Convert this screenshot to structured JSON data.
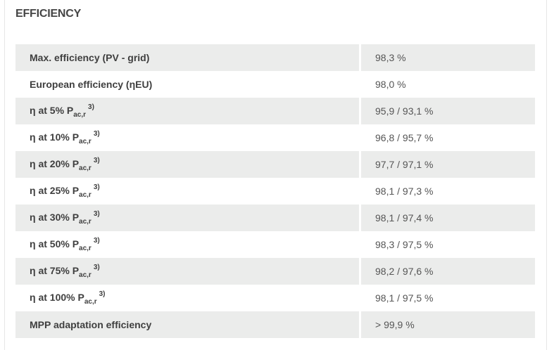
{
  "title": "EFFICIENCY",
  "rows": [
    {
      "label": "Max. efficiency (PV - grid)",
      "value": "98,3 %"
    },
    {
      "label": "European efficiency (ηEU)",
      "value": "98,0 %"
    },
    {
      "label": "η at 5% P",
      "sub": "ac,r",
      "sup": "3)",
      "value": "95,9 / 93,1 %"
    },
    {
      "label": "η at 10% P",
      "sub": "ac,r",
      "sup": "3)",
      "value": "96,8 / 95,7 %"
    },
    {
      "label": "η at 20% P",
      "sub": "ac,r",
      "sup": "3)",
      "value": "97,7 / 97,1 %"
    },
    {
      "label": "η at 25% P",
      "sub": "ac,r",
      "sup": "3)",
      "value": "98,1 / 97,3 %"
    },
    {
      "label": "η at 30% P",
      "sub": "ac,r",
      "sup": "3)",
      "value": "98,1 / 97,4 %"
    },
    {
      "label": "η at 50% P",
      "sub": "ac,r",
      "sup": "3)",
      "value": "98,3 / 97,5 %"
    },
    {
      "label": "η at 75% P",
      "sub": "ac,r",
      "sup": "3)",
      "value": "98,2 / 97,6 %"
    },
    {
      "label": "η at 100% P",
      "sub": "ac,r",
      "sup": "3)",
      "value": "98,1 / 97,5 %"
    },
    {
      "label": "MPP adaptation efficiency",
      "value": "> 99,9 %"
    }
  ]
}
